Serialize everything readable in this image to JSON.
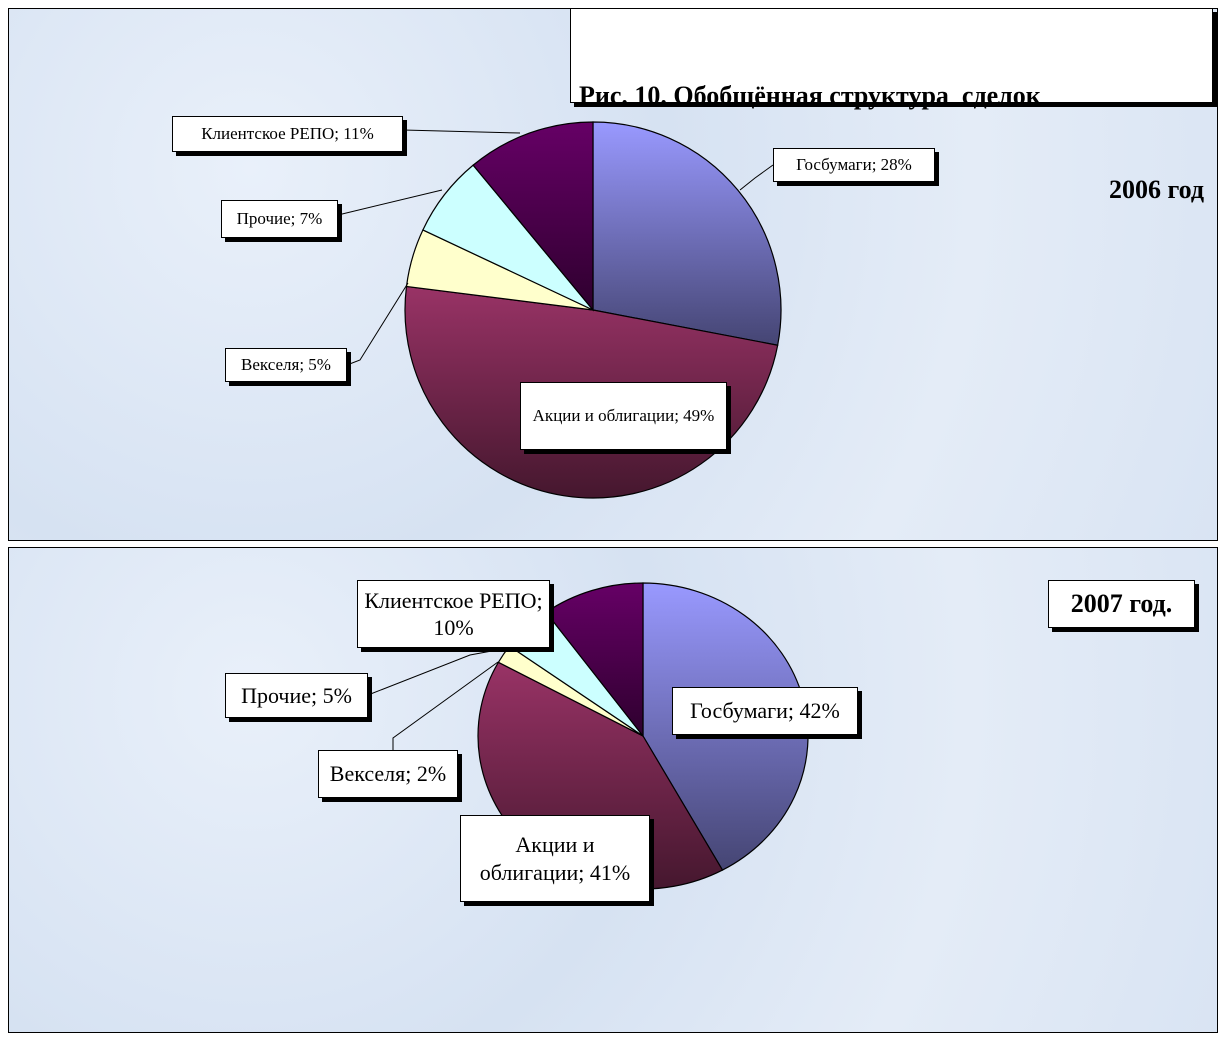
{
  "chart_data": [
    {
      "type": "pie",
      "title": "Рис. 10. Обобщённая структура  сделок",
      "subtitle": "2006 год",
      "categories": [
        "Госбумаги",
        "Акции и облигации",
        "Векселя",
        "Прочие",
        "Клиентское РЕПО"
      ],
      "values": [
        28,
        49,
        5,
        7,
        11
      ],
      "value_labels": [
        "Госбумаги; 28%",
        "Акции и облигации; 49%",
        "Векселя; 5%",
        "Прочие; 7%",
        "Клиентское РЕПО; 11%"
      ],
      "colors": [
        "#9999ff",
        "#993366",
        "#ffffcc",
        "#ccffff",
        "#660066"
      ]
    },
    {
      "type": "pie",
      "title": "2007 год.",
      "categories": [
        "Госбумаги",
        "Акции и облигации",
        "Векселя",
        "Прочие",
        "Клиентское РЕПО"
      ],
      "values": [
        42,
        41,
        2,
        5,
        10
      ],
      "value_labels": [
        "Госбумаги; 42%",
        "Акции и облигации; 41%",
        "Векселя; 2%",
        "Прочие; 5%",
        "Клиентское РЕПО; 10%"
      ],
      "colors": [
        "#9999ff",
        "#993366",
        "#ffffcc",
        "#ccffff",
        "#660066"
      ]
    }
  ]
}
